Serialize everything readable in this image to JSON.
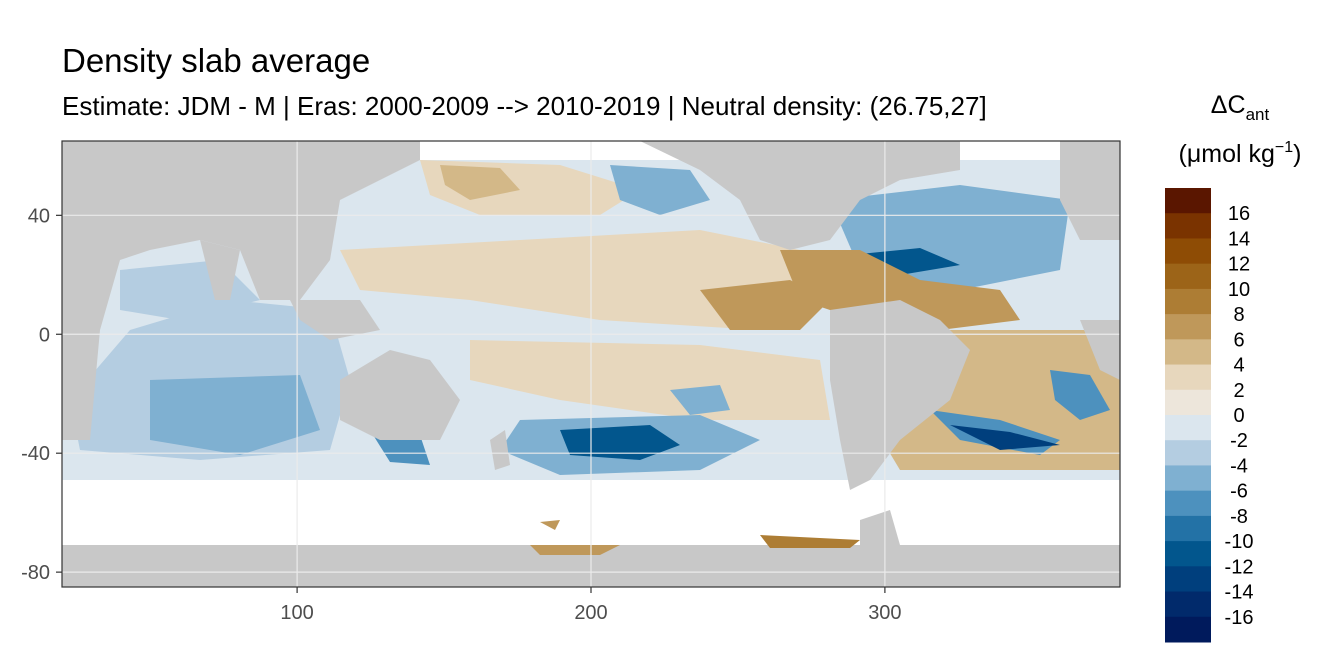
{
  "title": "Density slab average",
  "subtitle": "Estimate: JDM - M | Eras: 2000-2009 --> 2010-2019 | Neutral density: (26.75,27]",
  "legend": {
    "title_main": "ΔC",
    "title_sub": "ant",
    "unit_open": "(μmol kg",
    "unit_sup": "−1",
    "unit_close": ")",
    "bins": [
      {
        "label": "16",
        "color": "#5a1600"
      },
      {
        "label": "14",
        "color": "#7a3300"
      },
      {
        "label": "12",
        "color": "#8e4c05"
      },
      {
        "label": "10",
        "color": "#9c6418"
      },
      {
        "label": "8",
        "color": "#ad7d34"
      },
      {
        "label": "6",
        "color": "#bf985a"
      },
      {
        "label": "4",
        "color": "#d3b888"
      },
      {
        "label": "2",
        "color": "#e7d7bd"
      },
      {
        "label": "0",
        "color": "#ede6db"
      },
      {
        "label": "-2",
        "color": "#dbe6ee"
      },
      {
        "label": "-4",
        "color": "#b4cde1"
      },
      {
        "label": "-6",
        "color": "#7fb0d1"
      },
      {
        "label": "-8",
        "color": "#4d91be"
      },
      {
        "label": "-10",
        "color": "#2372a6"
      },
      {
        "label": "-12",
        "color": "#02568d"
      },
      {
        "label": "-14",
        "color": "#003f7d"
      },
      {
        "label": "-16",
        "color": "#012a6b"
      }
    ],
    "last_color": "#001a5c"
  },
  "axes": {
    "x_ticks": [
      100,
      200,
      300
    ],
    "y_ticks": [
      40,
      0,
      -40,
      -80
    ],
    "x_range": [
      20,
      380
    ],
    "y_range": [
      -85,
      65
    ]
  },
  "colors": {
    "land": "#c8c8c8",
    "no_data": "#ffffff",
    "grid": "#ebebeb",
    "panel_border": "#333333"
  }
}
